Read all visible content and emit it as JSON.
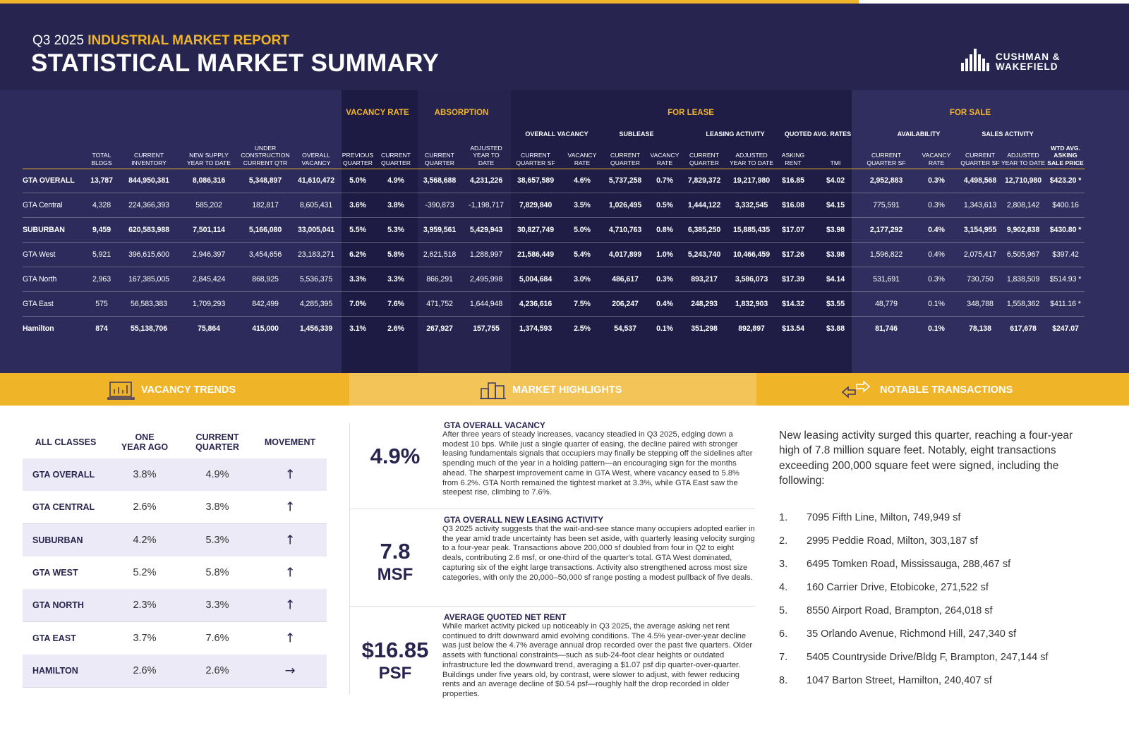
{
  "header": {
    "report_period": "Q3 2025",
    "report_name": "INDUSTRIAL MARKET REPORT",
    "title": "STATISTICAL MARKET SUMMARY",
    "logo": [
      "CUSHMAN &",
      "WAKEFIELD"
    ]
  },
  "summary_table": {
    "groups": [
      "VACANCY RATE",
      "ABSORPTION",
      "FOR LEASE",
      "FOR SALE"
    ],
    "subgroups": [
      "OVERALL VACANCY",
      "SUBLEASE",
      "LEASING ACTIVITY",
      "QUOTED AVG. RATES",
      "AVAILABILITY",
      "SALES ACTIVITY"
    ],
    "columns": [
      "TOTAL\nBLDGS",
      "CURRENT\nINVENTORY",
      "NEW SUPPLY\nYEAR TO DATE",
      "UNDER\nCONSTRUCTION\nCURRENT QTR",
      "OVERALL\nVACANCY",
      "PREVIOUS\nQUARTER",
      "CURRENT\nQUARTER",
      "CURRENT\nQUARTER",
      "ADJUSTED\nYEAR TO\nDATE",
      "CURRENT\nQUARTER SF",
      "VACANCY\nRATE",
      "CURRENT\nQUARTER",
      "VACANCY\nRATE",
      "CURRENT\nQUARTER",
      "ADJUSTED\nYEAR TO DATE",
      "ASKING\nRENT",
      "TMI",
      "CURRENT\nQUARTER SF",
      "VACANCY\nRATE",
      "CURRENT\nQUARTER SF",
      "ADJUSTED\nYEAR TO DATE",
      "WTD AVG.\nASKING\nSALE PRICE"
    ],
    "rows": [
      [
        "GTA OVERALL",
        "13,787",
        "844,950,381",
        "8,086,316",
        "5,348,897",
        "41,610,472",
        "5.0%",
        "4.9%",
        "3,568,688",
        "4,231,226",
        "38,657,589",
        "4.6%",
        "5,737,258",
        "0.7%",
        "7,829,372",
        "19,217,980",
        "$16.85",
        "$4.02",
        "2,952,883",
        "0.3%",
        "4,498,568",
        "12,710,980",
        "$423.20 *"
      ],
      [
        "GTA Central",
        "4,328",
        "224,366,393",
        "585,202",
        "182,817",
        "8,605,431",
        "3.6%",
        "3.8%",
        "-390,873",
        "-1,198,717",
        "7,829,840",
        "3.5%",
        "1,026,495",
        "0.5%",
        "1,444,122",
        "3,332,545",
        "$16.08",
        "$4.15",
        "775,591",
        "0.3%",
        "1,343,613",
        "2,808,142",
        "$400.16"
      ],
      [
        "SUBURBAN",
        "9,459",
        "620,583,988",
        "7,501,114",
        "5,166,080",
        "33,005,041",
        "5.5%",
        "5.3%",
        "3,959,561",
        "5,429,943",
        "30,827,749",
        "5.0%",
        "4,710,763",
        "0.8%",
        "6,385,250",
        "15,885,435",
        "$17.07",
        "$3.98",
        "2,177,292",
        "0.4%",
        "3,154,955",
        "9,902,838",
        "$430.80 *"
      ],
      [
        "GTA West",
        "5,921",
        "396,615,600",
        "2,946,397",
        "3,454,656",
        "23,183,271",
        "6.2%",
        "5.8%",
        "2,621,518",
        "1,288,997",
        "21,586,449",
        "5.4%",
        "4,017,899",
        "1.0%",
        "5,243,740",
        "10,466,459",
        "$17.26",
        "$3.98",
        "1,596,822",
        "0.4%",
        "2,075,417",
        "6,505,967",
        "$397.42"
      ],
      [
        "GTA North",
        "2,963",
        "167,385,005",
        "2,845,424",
        "868,925",
        "5,536,375",
        "3.3%",
        "3.3%",
        "866,291",
        "2,495,998",
        "5,004,684",
        "3.0%",
        "486,617",
        "0.3%",
        "893,217",
        "3,586,073",
        "$17.39",
        "$4.14",
        "531,691",
        "0.3%",
        "730,750",
        "1,838,509",
        "$514.93 *"
      ],
      [
        "GTA East",
        "575",
        "56,583,383",
        "1,709,293",
        "842,499",
        "4,285,395",
        "7.0%",
        "7.6%",
        "471,752",
        "1,644,948",
        "4,236,616",
        "7.5%",
        "206,247",
        "0.4%",
        "248,293",
        "1,832,903",
        "$14.32",
        "$3.55",
        "48,779",
        "0.1%",
        "348,788",
        "1,558,362",
        "$411.16 *"
      ],
      [
        "Hamilton",
        "874",
        "55,138,706",
        "75,864",
        "415,000",
        "1,456,339",
        "3.1%",
        "2.6%",
        "267,927",
        "157,755",
        "1,374,593",
        "2.5%",
        "54,537",
        "0.1%",
        "351,298",
        "892,897",
        "$13.54",
        "$3.88",
        "81,746",
        "0.1%",
        "78,138",
        "617,678",
        "$247.07"
      ]
    ]
  },
  "sections": [
    "VACANCY TRENDS",
    "MARKET HIGHLIGHTS",
    "NOTABLE TRANSACTIONS"
  ],
  "vacancy_trends": {
    "columns": [
      "ALL CLASSES",
      "ONE\nYEAR AGO",
      "CURRENT\nQUARTER",
      "MOVEMENT"
    ],
    "rows": [
      [
        "GTA OVERALL",
        "3.8%",
        "4.9%",
        "↑"
      ],
      [
        "GTA CENTRAL",
        "2.6%",
        "3.8%",
        "↑"
      ],
      [
        "SUBURBAN",
        "4.2%",
        "5.3%",
        "↑"
      ],
      [
        "GTA WEST",
        "5.2%",
        "5.8%",
        "↑"
      ],
      [
        "GTA NORTH",
        "2.3%",
        "3.3%",
        "↑"
      ],
      [
        "GTA EAST",
        "3.7%",
        "7.6%",
        "↑"
      ],
      [
        "HAMILTON",
        "2.6%",
        "2.6%",
        "→"
      ]
    ]
  },
  "highlights": [
    {
      "value": "4.9%",
      "heading": "GTA OVERALL VACANCY",
      "body": "After three years of steady increases, vacancy steadied in Q3 2025, edging down a modest 10 bps. While just a single quarter of easing, the decline paired with stronger leasing fundamentals signals that occupiers may finally be stepping off the sidelines after spending much of the year in a holding pattern—an encouraging sign for the months ahead. The sharpest improvement came in GTA West, where vacancy eased to 5.8% from 6.2%. GTA North remained the tightest market at 3.3%, while GTA East saw the steepest rise, climbing to 7.6%."
    },
    {
      "value": "7.8",
      "unit": "MSF",
      "heading": "GTA OVERALL NEW LEASING ACTIVITY",
      "body": "Q3 2025 activity suggests that the wait-and-see stance many occupiers adopted earlier in the year amid trade uncertainty has been set aside, with quarterly leasing velocity surging to a four-year peak. Transactions above 200,000 sf doubled from four in Q2 to eight deals, contributing 2.6 msf, or one-third of the quarter's total. GTA West dominated, capturing six of the eight large transactions. Activity also strengthened across most size categories, with only the 20,000–50,000 sf range posting a modest pullback of five deals."
    },
    {
      "value": "$16.85",
      "unit": "PSF",
      "heading": "AVERAGE QUOTED NET RENT",
      "body": "While market activity picked up noticeably in Q3 2025, the average asking net rent continued to drift downward amid evolving conditions. The 4.5% year-over-year decline was just below the 4.7% average annual drop recorded over the past five quarters. Older assets with functional constraints—such as sub-24-foot clear heights or outdated infrastructure led the downward trend, averaging a $1.07 psf dip quarter-over-quarter. Buildings under five years old, by contrast, were slower to adjust, with fewer reducing rents and an average decline of $0.54 psf—roughly half the drop recorded in older properties."
    }
  ],
  "transactions": {
    "intro": "New leasing activity surged this quarter, reaching a four-year high of 7.8 million square feet. Notably, eight transactions exceeding 200,000 square feet were signed, including the following:",
    "items": [
      {
        "number": "1.",
        "text": "7095 Fifth Line, Milton, 749,949 sf"
      },
      {
        "number": "2.",
        "text": "2995 Peddie Road, Milton, 303,187 sf"
      },
      {
        "number": "3.",
        "text": "6495 Tomken Road, Mississauga, 288,467 sf"
      },
      {
        "number": "4.",
        "text": "160 Carrier Drive, Etobicoke, 271,522 sf"
      },
      {
        "number": "5.",
        "text": "8550 Airport Road, Brampton, 264,018 sf"
      },
      {
        "number": "6.",
        "text": "35 Orlando Avenue, Richmond Hill, 247,340 sf"
      },
      {
        "number": "7.",
        "text": "5405 Countryside Drive/Bldg F, Brampton, 247,144 sf"
      },
      {
        "number": "8.",
        "text": "1047 Barton Street, Hamilton, 240,407 sf"
      }
    ]
  }
}
